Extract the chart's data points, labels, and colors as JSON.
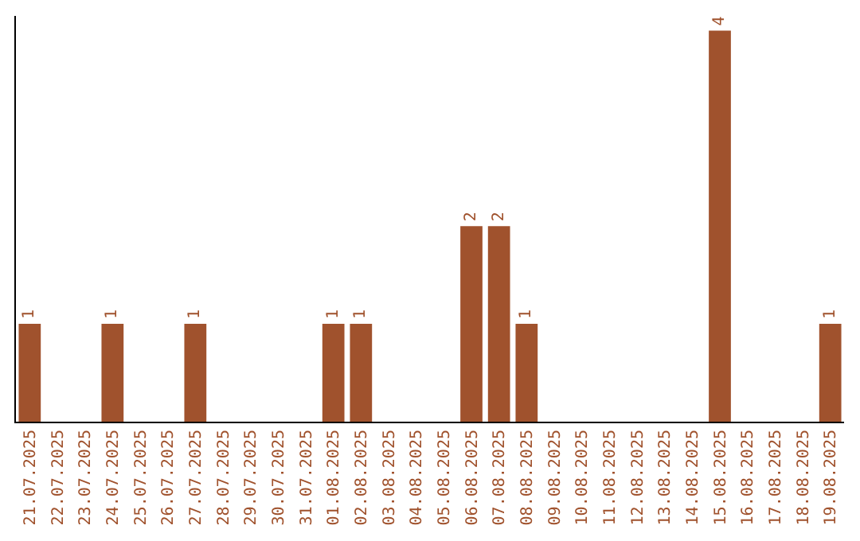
{
  "chart_data": {
    "type": "bar",
    "categories": [
      "21.07.2025",
      "22.07.2025",
      "23.07.2025",
      "24.07.2025",
      "25.07.2025",
      "26.07.2025",
      "27.07.2025",
      "28.07.2025",
      "29.07.2025",
      "30.07.2025",
      "31.07.2025",
      "01.08.2025",
      "02.08.2025",
      "03.08.2025",
      "04.08.2025",
      "05.08.2025",
      "06.08.2025",
      "07.08.2025",
      "08.08.2025",
      "09.08.2025",
      "10.08.2025",
      "11.08.2025",
      "12.08.2025",
      "13.08.2025",
      "14.08.2025",
      "15.08.2025",
      "16.08.2025",
      "17.08.2025",
      "18.08.2025",
      "19.08.2025"
    ],
    "values": [
      1,
      0,
      0,
      1,
      0,
      0,
      1,
      0,
      0,
      0,
      0,
      1,
      1,
      0,
      0,
      0,
      2,
      2,
      1,
      0,
      0,
      0,
      0,
      0,
      0,
      4,
      0,
      0,
      0,
      1
    ],
    "value_labels": [
      "1",
      null,
      null,
      "1",
      null,
      null,
      "1",
      null,
      null,
      null,
      null,
      "1",
      "1",
      null,
      null,
      null,
      "2",
      "2",
      "1",
      null,
      null,
      null,
      null,
      null,
      null,
      "4",
      null,
      null,
      null,
      "1"
    ],
    "color": "#a0522d",
    "ylim": [
      0,
      4.15
    ]
  }
}
